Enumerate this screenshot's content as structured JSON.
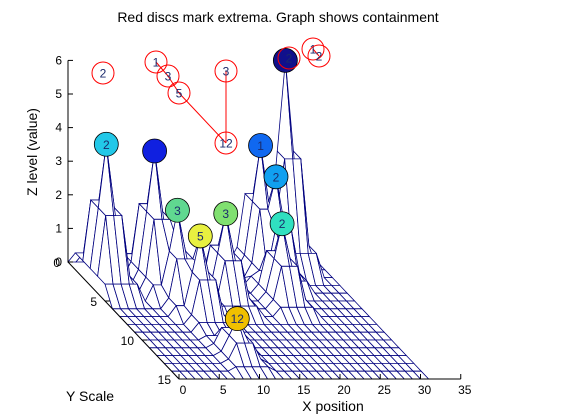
{
  "chart_data": {
    "type": "surface-mesh-3d",
    "title": "Red discs mark extrema. Graph shows containment",
    "xlabel": "X position",
    "ylabel": "Y Scale",
    "zlabel": "Z level (value)",
    "xticks": [
      0,
      5,
      10,
      15,
      20,
      25,
      30,
      35
    ],
    "yticks": [
      0,
      5,
      10,
      15
    ],
    "zticks": [
      0,
      1,
      2,
      3,
      4,
      5,
      6
    ],
    "xlim": [
      0,
      35
    ],
    "ylim": [
      0,
      15
    ],
    "zlim": [
      0,
      6
    ],
    "grid": false,
    "mesh_color": "#00007f",
    "mesh_fill": "#ffffff",
    "mesh_nx": 32,
    "mesh_ny": 16,
    "extrema_discs": [
      {
        "label": "2",
        "x": 2,
        "y": 3,
        "z": 4.2,
        "color": "#22c8e8"
      },
      {
        "label": "",
        "x": 8,
        "y": 3,
        "z": 4.0,
        "color": "#1020e0"
      },
      {
        "label": "3",
        "x": 9,
        "y": 5,
        "z": 2.7,
        "color": "#60d890"
      },
      {
        "label": "5",
        "x": 10,
        "y": 7,
        "z": 2.4,
        "color": "#e8f040"
      },
      {
        "label": "3",
        "x": 15,
        "y": 5,
        "z": 2.6,
        "color": "#80e070"
      },
      {
        "label": "2",
        "x": 22,
        "y": 5,
        "z": 2.3,
        "color": "#30e0c0"
      },
      {
        "label": "1",
        "x": 23,
        "y": 1,
        "z": 3.7,
        "color": "#1068f0"
      },
      {
        "label": "2",
        "x": 24,
        "y": 2,
        "z": 3.0,
        "color": "#10a0f0"
      },
      {
        "label": "",
        "x": 27,
        "y": 0,
        "z": 6.0,
        "color": "#10108c"
      },
      {
        "label": "12",
        "x": 10,
        "y": 12,
        "z": 1.1,
        "color": "#f0c000"
      }
    ],
    "containment_graph": {
      "node_color": "#ff0000",
      "nodes": [
        {
          "id": "a",
          "label": "2"
        },
        {
          "id": "b",
          "label": "1"
        },
        {
          "id": "c",
          "label": "3"
        },
        {
          "id": "d",
          "label": "5"
        },
        {
          "id": "e",
          "label": "3"
        },
        {
          "id": "f",
          "label": "12"
        },
        {
          "id": "g",
          "label": "2"
        },
        {
          "id": "h",
          "label": "1"
        },
        {
          "id": "i",
          "label": "2"
        }
      ],
      "edges": [
        [
          "b",
          "c"
        ],
        [
          "c",
          "d"
        ],
        [
          "d",
          "f"
        ],
        [
          "e",
          "f"
        ],
        [
          "h",
          "i"
        ]
      ]
    }
  }
}
